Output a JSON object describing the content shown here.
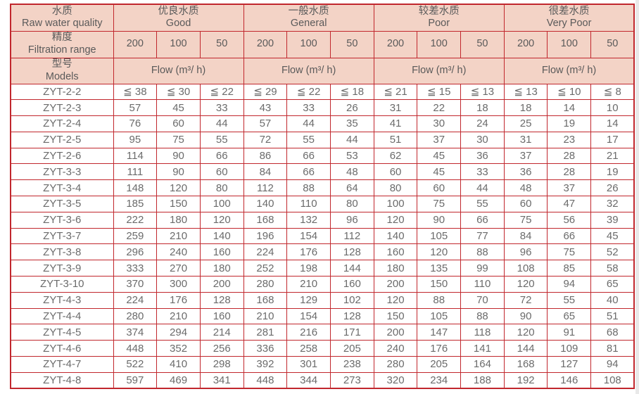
{
  "colors": {
    "border": "#c1272d",
    "header_bg": "#f3d3c6",
    "header_text": "#5a5a5a",
    "cell_text": "#6b6b6b"
  },
  "table": {
    "corner": {
      "row1_zh": "水质",
      "row1_en": "Raw water quality",
      "row2_zh": "精度",
      "row2_en": "Filtration range",
      "row3_zh": "型号",
      "row3_en": "Models"
    },
    "quality_groups": [
      {
        "zh": "优良水质",
        "en": "Good"
      },
      {
        "zh": "一般水质",
        "en": "General"
      },
      {
        "zh": "较差水质",
        "en": "Poor"
      },
      {
        "zh": "很差水质",
        "en": "Very Poor"
      }
    ],
    "filtration_values": [
      "200",
      "100",
      "50"
    ],
    "flow_label": "Flow (m³/ h)",
    "rows": [
      {
        "model": "ZYT-2-2",
        "values": [
          "≦ 38",
          "≦ 30",
          "≦ 22",
          "≦ 29",
          "≦ 22",
          "≦ 18",
          "≦ 21",
          "≦ 15",
          "≦ 13",
          "≦ 13",
          "≦ 10",
          "≦ 8"
        ]
      },
      {
        "model": "ZYT-2-3",
        "values": [
          "57",
          "45",
          "33",
          "43",
          "33",
          "26",
          "31",
          "22",
          "18",
          "18",
          "14",
          "10"
        ]
      },
      {
        "model": "ZYT-2-4",
        "values": [
          "76",
          "60",
          "44",
          "57",
          "44",
          "35",
          "41",
          "30",
          "24",
          "25",
          "19",
          "14"
        ]
      },
      {
        "model": "ZYT-2-5",
        "values": [
          "95",
          "75",
          "55",
          "72",
          "55",
          "44",
          "51",
          "37",
          "30",
          "31",
          "23",
          "17"
        ]
      },
      {
        "model": "ZYT-2-6",
        "values": [
          "114",
          "90",
          "66",
          "86",
          "66",
          "53",
          "62",
          "45",
          "36",
          "37",
          "28",
          "21"
        ]
      },
      {
        "model": "ZYT-3-3",
        "values": [
          "111",
          "90",
          "60",
          "84",
          "66",
          "48",
          "60",
          "45",
          "33",
          "36",
          "28",
          "19"
        ]
      },
      {
        "model": "ZYT-3-4",
        "values": [
          "148",
          "120",
          "80",
          "112",
          "88",
          "64",
          "80",
          "60",
          "44",
          "48",
          "37",
          "26"
        ]
      },
      {
        "model": "ZYT-3-5",
        "values": [
          "185",
          "150",
          "100",
          "140",
          "110",
          "80",
          "100",
          "75",
          "55",
          "60",
          "47",
          "32"
        ]
      },
      {
        "model": "ZYT-3-6",
        "values": [
          "222",
          "180",
          "120",
          "168",
          "132",
          "96",
          "120",
          "90",
          "66",
          "75",
          "56",
          "39"
        ]
      },
      {
        "model": "ZYT-3-7",
        "values": [
          "259",
          "210",
          "140",
          "196",
          "154",
          "112",
          "140",
          "105",
          "77",
          "84",
          "66",
          "45"
        ]
      },
      {
        "model": "ZYT-3-8",
        "values": [
          "296",
          "240",
          "160",
          "224",
          "176",
          "128",
          "160",
          "120",
          "88",
          "96",
          "75",
          "52"
        ]
      },
      {
        "model": "ZYT-3-9",
        "values": [
          "333",
          "270",
          "180",
          "252",
          "198",
          "144",
          "180",
          "135",
          "99",
          "108",
          "85",
          "58"
        ]
      },
      {
        "model": "ZYT-3-10",
        "values": [
          "370",
          "300",
          "200",
          "280",
          "210",
          "160",
          "200",
          "150",
          "110",
          "120",
          "94",
          "65"
        ]
      },
      {
        "model": "ZYT-4-3",
        "values": [
          "224",
          "176",
          "128",
          "168",
          "129",
          "102",
          "120",
          "88",
          "70",
          "72",
          "55",
          "40"
        ]
      },
      {
        "model": "ZYT-4-4",
        "values": [
          "280",
          "210",
          "160",
          "210",
          "154",
          "128",
          "150",
          "105",
          "88",
          "90",
          "65",
          "51"
        ]
      },
      {
        "model": "ZYT-4-5",
        "values": [
          "374",
          "294",
          "214",
          "281",
          "216",
          "171",
          "200",
          "147",
          "118",
          "120",
          "91",
          "68"
        ]
      },
      {
        "model": "ZYT-4-6",
        "values": [
          "448",
          "352",
          "256",
          "336",
          "258",
          "205",
          "240",
          "176",
          "141",
          "144",
          "109",
          "81"
        ]
      },
      {
        "model": "ZYT-4-7",
        "values": [
          "522",
          "410",
          "298",
          "392",
          "301",
          "238",
          "280",
          "205",
          "164",
          "168",
          "127",
          "94"
        ]
      },
      {
        "model": "ZYT-4-8",
        "values": [
          "597",
          "469",
          "341",
          "448",
          "344",
          "273",
          "320",
          "234",
          "188",
          "192",
          "146",
          "108"
        ]
      }
    ]
  }
}
